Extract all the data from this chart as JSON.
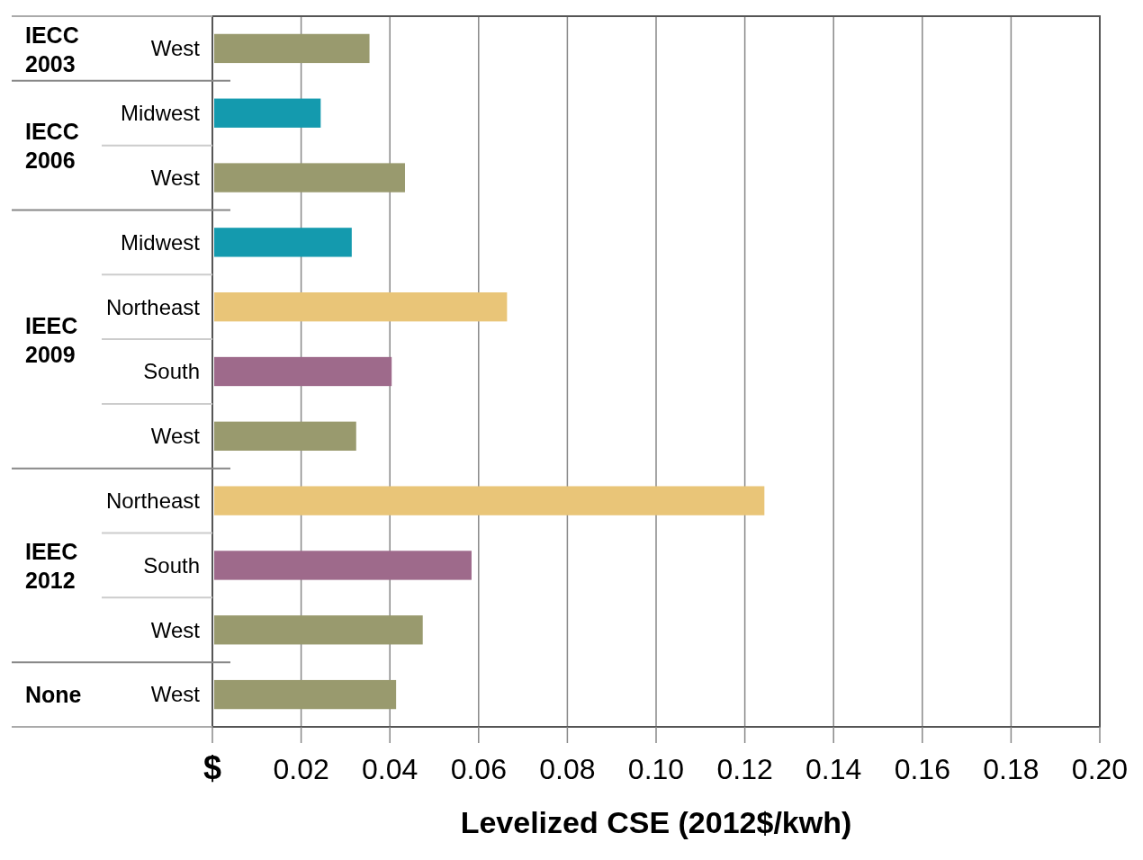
{
  "chart_data": {
    "type": "bar",
    "orientation": "horizontal",
    "xlabel": "Levelized CSE (2012$/kwh)",
    "categories": [
      "West",
      "Midwest",
      "West",
      "Midwest",
      "Northeast",
      "South",
      "West",
      "Northeast",
      "South",
      "West",
      "West"
    ],
    "values": [
      0.035,
      0.024,
      0.043,
      0.031,
      0.066,
      0.04,
      0.032,
      0.124,
      0.058,
      0.047,
      0.041
    ],
    "colors": [
      "#999a6e",
      "#149aae",
      "#999a6e",
      "#149aae",
      "#e9c578",
      "#9e6a8b",
      "#999a6e",
      "#e9c578",
      "#9e6a8b",
      "#999a6e",
      "#999a6e"
    ],
    "annotations": [
      "IECC 2003",
      "IECC 2006",
      "IEEC 2009",
      "IEEC 2012",
      "None"
    ],
    "xlim": [
      0,
      0.2
    ],
    "xticks": [
      {
        "value": 0,
        "label": "$"
      },
      0.02,
      0.04,
      0.06,
      0.08,
      {
        "value": 0.1,
        "label": "0.10"
      },
      0.12,
      0.14,
      0.16,
      0.18,
      {
        "value": 0.2,
        "label": "0.20"
      }
    ],
    "grid": "x"
  }
}
